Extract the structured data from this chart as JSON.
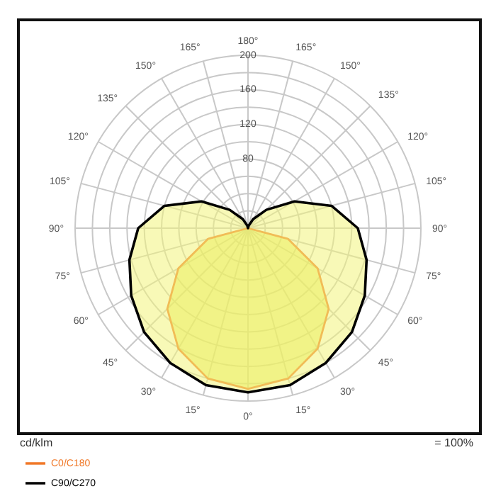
{
  "chart_data": {
    "type": "radar",
    "ylabel": "cd/klm",
    "annotations": [
      "= 100%"
    ],
    "categories": [
      "180°",
      "165°",
      "150°",
      "135°",
      "120°",
      "105°",
      "90°",
      "75°",
      "60°",
      "45°",
      "30°",
      "15°",
      "0°",
      "15°",
      "30°",
      "45°",
      "60°",
      "75°",
      "90°",
      "105°",
      "120°",
      "135°",
      "150°",
      "165°"
    ],
    "series": [
      {
        "name": "C0/C180",
        "color": "#f07828",
        "values": [
          0,
          0,
          0,
          0,
          0,
          0,
          0,
          48,
          93,
          132,
          161,
          180,
          186,
          180,
          161,
          132,
          93,
          48,
          0,
          0,
          0,
          0,
          0,
          0
        ]
      },
      {
        "name": "C90/C270",
        "color": "#000000",
        "values": [
          0,
          3,
          12,
          30,
          62,
          100,
          127,
          142,
          156,
          170,
          180,
          188,
          190,
          188,
          180,
          170,
          156,
          142,
          127,
          100,
          62,
          30,
          12,
          3
        ]
      }
    ],
    "ylim": [
      0,
      200
    ],
    "yticks": [
      80,
      120,
      160,
      200
    ],
    "grid": true,
    "legend": "bottom left"
  }
}
